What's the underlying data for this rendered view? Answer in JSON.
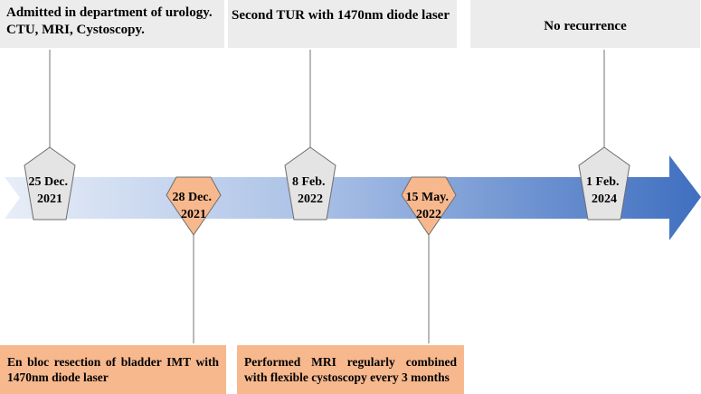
{
  "colors": {
    "arrow_start": "#e8eef8",
    "arrow_end": "#3f6fc0",
    "gray_box": "#ececec",
    "gray_marker": "#e4e4e4",
    "orange": "#f7b88e",
    "line": "#8a8a8a"
  },
  "top_events": [
    {
      "text": [
        "Admitted in department of urology.",
        "CTU, MRI, Cystoscopy."
      ]
    },
    {
      "text": [
        "Second TUR with 1470nm diode laser"
      ]
    },
    {
      "text": [
        "No recurrence"
      ]
    }
  ],
  "bottom_events": [
    {
      "text": "En bloc resection of bladder IMT with 1470nm diode laser"
    },
    {
      "text": "Performed MRI regularly combined with flexible cystoscopy every 3 months"
    }
  ],
  "markers": [
    {
      "lines": [
        "25 Dec.",
        "2021"
      ],
      "style": "gray"
    },
    {
      "lines": [
        "28 Dec.",
        "2021"
      ],
      "style": "orange"
    },
    {
      "lines": [
        "8 Feb.",
        "2022"
      ],
      "style": "gray"
    },
    {
      "lines": [
        "15 May.",
        "2022"
      ],
      "style": "orange"
    },
    {
      "lines": [
        "1 Feb.",
        "2024"
      ],
      "style": "gray"
    }
  ]
}
